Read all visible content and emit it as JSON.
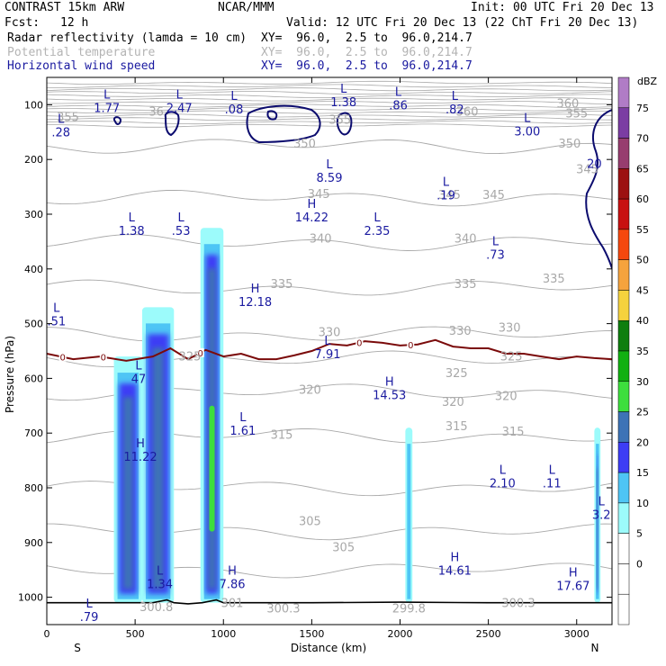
{
  "header": {
    "model": "CONTRAST 15km ARW",
    "org": "NCAR/MMM",
    "init": "Init: 00 UTC Fri 20 Dec 13",
    "fcst_label": "Fcst:",
    "fcst_value": "12 h",
    "valid": "Valid: 12 UTC Fri 20 Dec 13 (22 ChT Fri 20 Dec 13)",
    "fields": [
      {
        "name": "Radar reflectivity (lamda = 10 cm)",
        "xy": "XY=  96.0,  2.5 to  96.0,214.7",
        "color": "#000000"
      },
      {
        "name": "Potential temperature",
        "xy": "XY=  96.0,  2.5 to  96.0,214.7",
        "color": "#b4b4b4"
      },
      {
        "name": "Horizontal wind speed",
        "xy": "XY=  96.0,  2.5 to  96.0,214.7",
        "color": "#1a1aa0"
      }
    ]
  },
  "chart_data": {
    "type": "heatmap",
    "xlabel": "Distance (km)",
    "ylabel": "Pressure (hPa)",
    "xlim": [
      0,
      3200
    ],
    "ylim": [
      1050,
      50
    ],
    "x_ticks": [
      0,
      500,
      1000,
      1500,
      2000,
      2500,
      3000
    ],
    "y_ticks": [
      100,
      200,
      300,
      400,
      500,
      600,
      700,
      800,
      900,
      1000
    ],
    "x_end_labels": {
      "left": "S",
      "right": "N"
    },
    "colorbar": {
      "unit": "dBZ",
      "levels": [
        -5,
        0,
        5,
        10,
        15,
        20,
        25,
        30,
        35,
        40,
        45,
        50,
        55,
        60,
        65,
        70,
        75
      ],
      "labeled_levels": [
        0,
        5,
        10,
        15,
        20,
        25,
        30,
        35,
        40,
        45,
        50,
        55,
        60,
        65,
        70,
        75
      ],
      "colors": [
        "#ffffff",
        "#ffffff",
        "#9cfbfb",
        "#4ec5f5",
        "#3d3df5",
        "#3d73b6",
        "#3dde3d",
        "#11b011",
        "#0e7e0e",
        "#f5d23d",
        "#f5a33d",
        "#f5480e",
        "#c81111",
        "#9c1111",
        "#973d6f",
        "#7b3da3",
        "#b07cc6"
      ]
    },
    "reflectivity_cells": [
      {
        "x0": 380,
        "x1": 540,
        "p_top": 560,
        "p_bottom": 1010,
        "max_dbz": 22
      },
      {
        "x0": 540,
        "x1": 720,
        "p_top": 470,
        "p_bottom": 1010,
        "max_dbz": 22
      },
      {
        "x0": 870,
        "x1": 1000,
        "p_top": 325,
        "p_bottom": 1010,
        "max_dbz": 27
      },
      {
        "x0": 2030,
        "x1": 2070,
        "p_top": 690,
        "p_bottom": 1010,
        "max_dbz": 14
      },
      {
        "x0": 3100,
        "x1": 3135,
        "p_top": 690,
        "p_bottom": 1010,
        "max_dbz": 20
      }
    ],
    "theta_labels": [
      {
        "x": 120,
        "p": 130,
        "text": "355"
      },
      {
        "x": 620,
        "p": 120,
        "text": "36"
      },
      {
        "x": 1660,
        "p": 135,
        "text": "355"
      },
      {
        "x": 2380,
        "p": 120,
        "text": "360"
      },
      {
        "x": 3000,
        "p": 123,
        "text": "355"
      },
      {
        "x": 2950,
        "p": 105,
        "text": "360"
      },
      {
        "x": 1460,
        "p": 178,
        "text": "350"
      },
      {
        "x": 2960,
        "p": 178,
        "text": "350"
      },
      {
        "x": 1540,
        "p": 270,
        "text": "345"
      },
      {
        "x": 2280,
        "p": 272,
        "text": "345"
      },
      {
        "x": 2530,
        "p": 272,
        "text": "345"
      },
      {
        "x": 3060,
        "p": 225,
        "text": "345"
      },
      {
        "x": 1550,
        "p": 352,
        "text": "340"
      },
      {
        "x": 2370,
        "p": 352,
        "text": "340"
      },
      {
        "x": 1330,
        "p": 435,
        "text": "335"
      },
      {
        "x": 2370,
        "p": 435,
        "text": "335"
      },
      {
        "x": 2870,
        "p": 425,
        "text": "335"
      },
      {
        "x": 1600,
        "p": 523,
        "text": "330"
      },
      {
        "x": 2340,
        "p": 520,
        "text": "330"
      },
      {
        "x": 2620,
        "p": 515,
        "text": "330"
      },
      {
        "x": 810,
        "p": 567,
        "text": "325"
      },
      {
        "x": 2320,
        "p": 598,
        "text": "325"
      },
      {
        "x": 2630,
        "p": 567,
        "text": "325"
      },
      {
        "x": 1490,
        "p": 628,
        "text": "320"
      },
      {
        "x": 2300,
        "p": 650,
        "text": "320"
      },
      {
        "x": 2600,
        "p": 640,
        "text": "320"
      },
      {
        "x": 1330,
        "p": 710,
        "text": "315"
      },
      {
        "x": 2320,
        "p": 695,
        "text": "315"
      },
      {
        "x": 2640,
        "p": 705,
        "text": "315"
      },
      {
        "x": 1490,
        "p": 868,
        "text": "305"
      },
      {
        "x": 1680,
        "p": 916,
        "text": "305"
      },
      {
        "x": 620,
        "p": 1025,
        "text": "300.8"
      },
      {
        "x": 1050,
        "p": 1018,
        "text": "301"
      },
      {
        "x": 1340,
        "p": 1028,
        "text": "300.3"
      },
      {
        "x": 2050,
        "p": 1028,
        "text": "299.8"
      },
      {
        "x": 2670,
        "p": 1018,
        "text": "300.3"
      }
    ],
    "wind_extrema": [
      {
        "type": "L",
        "x": 340,
        "p": 90,
        "value": "1.77"
      },
      {
        "type": "L",
        "x": 750,
        "p": 90,
        "value": "2.47"
      },
      {
        "type": "L",
        "x": 1060,
        "p": 93,
        "value": ".08"
      },
      {
        "type": "L",
        "x": 1680,
        "p": 80,
        "value": "1.38"
      },
      {
        "type": "L",
        "x": 1990,
        "p": 85,
        "value": ".86"
      },
      {
        "type": "L",
        "x": 2310,
        "p": 93,
        "value": ".82"
      },
      {
        "type": "L",
        "x": 2720,
        "p": 133,
        "value": "3.00"
      },
      {
        "type": "L",
        "x": 80,
        "p": 135,
        "value": ".28"
      },
      {
        "type": "L",
        "x": 1600,
        "p": 218,
        "value": "8.59"
      },
      {
        "type": "L",
        "x": 2260,
        "p": 250,
        "value": ".19"
      },
      {
        "type": "H",
        "x": 1500,
        "p": 290,
        "value": "14.22"
      },
      {
        "type": "L",
        "x": 480,
        "p": 315,
        "value": "1.38"
      },
      {
        "type": "L",
        "x": 760,
        "p": 315,
        "value": ".53"
      },
      {
        "type": "L",
        "x": 1870,
        "p": 315,
        "value": "2.35"
      },
      {
        "type": "L",
        "x": 2540,
        "p": 358,
        "value": ".73"
      },
      {
        "type": "H",
        "x": 1180,
        "p": 445,
        "value": "12.18"
      },
      {
        "type": "L",
        "x": 55,
        "p": 480,
        "value": ".51"
      },
      {
        "type": "L",
        "x": 1590,
        "p": 540,
        "value": "7.91"
      },
      {
        "type": "L",
        "x": 520,
        "p": 585,
        "value": "47"
      },
      {
        "type": "H",
        "x": 1940,
        "p": 615,
        "value": "14.53"
      },
      {
        "type": "L",
        "x": 1110,
        "p": 680,
        "value": "1.61"
      },
      {
        "type": "H",
        "x": 530,
        "p": 728,
        "value": "11.22"
      },
      {
        "type": "L",
        "x": 2580,
        "p": 776,
        "value": "2.10"
      },
      {
        "type": "L",
        "x": 2860,
        "p": 776,
        "value": ".11"
      },
      {
        "type": "L",
        "x": 3140,
        "p": 834,
        "value": "3.2"
      },
      {
        "type": "H",
        "x": 2310,
        "p": 936,
        "value": "14.61"
      },
      {
        "type": "L",
        "x": 640,
        "p": 960,
        "value": "1.34"
      },
      {
        "type": "H",
        "x": 1050,
        "p": 960,
        "value": "7.86"
      },
      {
        "type": "H",
        "x": 2980,
        "p": 964,
        "value": "17.67"
      },
      {
        "type": "L",
        "x": 240,
        "p": 1020,
        "value": ".79"
      }
    ],
    "wind_contour_label": {
      "x": 3100,
      "p": 215,
      "text": "20"
    },
    "freezing_line": {
      "label": "0",
      "label_x": [
        90,
        320,
        870,
        1770,
        2060
      ],
      "points": [
        [
          0,
          555
        ],
        [
          150,
          565
        ],
        [
          300,
          560
        ],
        [
          450,
          568
        ],
        [
          600,
          560
        ],
        [
          700,
          545
        ],
        [
          800,
          565
        ],
        [
          900,
          548
        ],
        [
          1000,
          560
        ],
        [
          1100,
          555
        ],
        [
          1200,
          565
        ],
        [
          1300,
          565
        ],
        [
          1400,
          558
        ],
        [
          1500,
          550
        ],
        [
          1600,
          537
        ],
        [
          1700,
          540
        ],
        [
          1800,
          532
        ],
        [
          1900,
          535
        ],
        [
          2000,
          540
        ],
        [
          2100,
          538
        ],
        [
          2200,
          530
        ],
        [
          2300,
          542
        ],
        [
          2400,
          545
        ],
        [
          2500,
          545
        ],
        [
          2600,
          555
        ],
        [
          2700,
          555
        ],
        [
          2800,
          560
        ],
        [
          2900,
          565
        ],
        [
          3000,
          560
        ],
        [
          3100,
          563
        ],
        [
          3200,
          565
        ]
      ]
    },
    "terrain": {
      "points": [
        [
          0,
          1010
        ],
        [
          400,
          1010
        ],
        [
          600,
          1010
        ],
        [
          680,
          1005
        ],
        [
          720,
          1010
        ],
        [
          800,
          1012
        ],
        [
          880,
          1010
        ],
        [
          960,
          1005
        ],
        [
          1000,
          1010
        ],
        [
          1500,
          1010
        ],
        [
          2000,
          1009
        ],
        [
          2500,
          1010
        ],
        [
          3000,
          1010
        ],
        [
          3100,
          1010
        ],
        [
          3200,
          1010
        ]
      ]
    }
  }
}
